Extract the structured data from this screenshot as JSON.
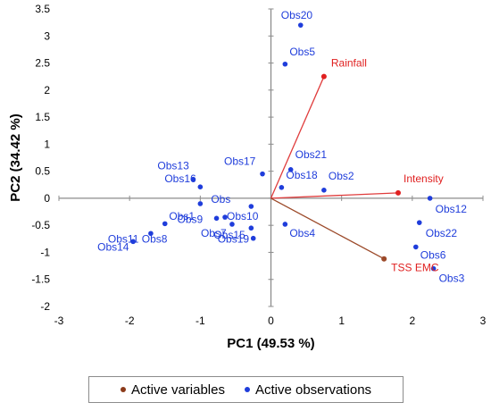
{
  "chart_data": {
    "type": "scatter",
    "subtype": "pca-biplot",
    "xlabel": "PC1 (49.53 %)",
    "ylabel": "PC2 (34.42 %)",
    "xlim": [
      -3,
      3
    ],
    "ylim": [
      -2,
      3.5
    ],
    "xticks": [
      "-3",
      "-2",
      "-1",
      "0",
      "1",
      "2",
      "3"
    ],
    "yticks": [
      "-2",
      "-1.5",
      "-1",
      "-0.5",
      "0",
      "0.5",
      "1",
      "1.5",
      "2",
      "2.5",
      "3",
      "3.5"
    ],
    "grid": false,
    "legend_position": "bottom",
    "legend": [
      {
        "name": "Active variables",
        "color": "#8b3a1a"
      },
      {
        "name": "Active observations",
        "color": "#1f3ddb"
      }
    ],
    "observations": [
      {
        "label": "Obs20",
        "x": 0.42,
        "y": 3.2
      },
      {
        "label": "Obs5",
        "x": 0.2,
        "y": 2.48
      },
      {
        "label": "Obs21",
        "x": 0.28,
        "y": 0.53
      },
      {
        "label": "Obs17",
        "x": -0.12,
        "y": 0.45
      },
      {
        "label": "Obs18",
        "x": 0.15,
        "y": 0.2
      },
      {
        "label": "Obs2",
        "x": 0.75,
        "y": 0.15
      },
      {
        "label": "Obs13",
        "x": -1.1,
        "y": 0.35
      },
      {
        "label": "Obs16",
        "x": -1.0,
        "y": 0.21
      },
      {
        "label": "Obs1",
        "x": -1.0,
        "y": -0.1
      },
      {
        "label": "Obs10",
        "x": -0.65,
        "y": -0.35
      },
      {
        "label": "Obs9",
        "x": -0.77,
        "y": -0.37
      },
      {
        "label": "Obs7",
        "x": -0.55,
        "y": -0.48
      },
      {
        "label": "Obs15",
        "x": -0.28,
        "y": -0.55
      },
      {
        "label": "Obs19",
        "x": -0.25,
        "y": -0.74
      },
      {
        "label": "Obs4",
        "x": 0.2,
        "y": -0.48
      },
      {
        "label": "Obs8",
        "x": -1.5,
        "y": -0.47
      },
      {
        "label": "Obs11",
        "x": -1.7,
        "y": -0.65
      },
      {
        "label": "Obs14",
        "x": -1.95,
        "y": -0.8
      },
      {
        "label": "Obs12",
        "x": 2.25,
        "y": 0.0
      },
      {
        "label": "Obs22",
        "x": 2.1,
        "y": -0.45
      },
      {
        "label": "Obs6",
        "x": 2.05,
        "y": -0.9
      },
      {
        "label": "Obs3",
        "x": 2.3,
        "y": -1.3
      },
      {
        "label": "Obs",
        "x": -0.28,
        "y": -0.15
      }
    ],
    "variables": [
      {
        "label": "Rainfall",
        "x": 0.75,
        "y": 2.25
      },
      {
        "label": "Intensity",
        "x": 1.8,
        "y": 0.1
      },
      {
        "label": "TSS EMC",
        "x": 1.6,
        "y": -1.12
      }
    ]
  },
  "colors": {
    "observation": "#1f3ddb",
    "variable_label": "#e02020",
    "vector_red": "#e03c3c",
    "vector_brown": "#9c4a2a",
    "axis": "#8c8c8c"
  }
}
